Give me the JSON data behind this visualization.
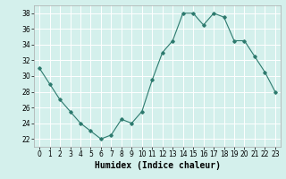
{
  "x": [
    0,
    1,
    2,
    3,
    4,
    5,
    6,
    7,
    8,
    9,
    10,
    11,
    12,
    13,
    14,
    15,
    16,
    17,
    18,
    19,
    20,
    21,
    22,
    23
  ],
  "y": [
    31,
    29,
    27,
    25.5,
    24,
    23,
    22,
    22.5,
    24.5,
    24,
    25.5,
    29.5,
    33,
    34.5,
    38,
    38,
    36.5,
    38,
    37.5,
    34.5,
    34.5,
    32.5,
    30.5,
    28
  ],
  "line_color": "#2d7a6e",
  "marker": "D",
  "marker_size": 1.8,
  "bg_color": "#d4f0ec",
  "grid_color": "#ffffff",
  "xlabel": "Humidex (Indice chaleur)",
  "xlabel_fontsize": 7,
  "xlim": [
    -0.5,
    23.5
  ],
  "ylim": [
    21,
    39
  ],
  "yticks": [
    22,
    24,
    26,
    28,
    30,
    32,
    34,
    36,
    38
  ],
  "xtick_labels": [
    "0",
    "1",
    "2",
    "3",
    "4",
    "5",
    "6",
    "7",
    "8",
    "9",
    "10",
    "11",
    "12",
    "13",
    "14",
    "15",
    "16",
    "17",
    "18",
    "19",
    "20",
    "21",
    "22",
    "23"
  ],
  "tick_fontsize": 5.5
}
